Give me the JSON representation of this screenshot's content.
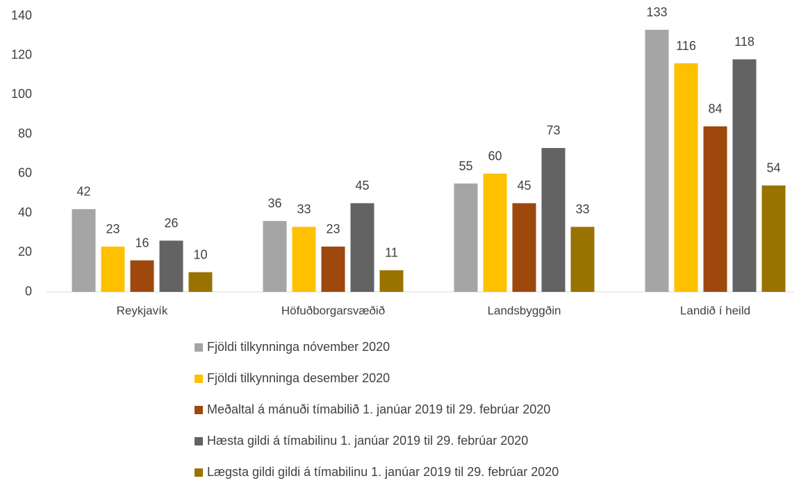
{
  "chart_data": {
    "type": "bar",
    "categories": [
      "Reykjavík",
      "Höfuðborgarsvæðið",
      "Landsbyggðin",
      "Landið í heild"
    ],
    "series": [
      {
        "name": "Fjöldi tilkynninga nóvember 2020",
        "color": "#a5a5a5",
        "values": [
          42,
          36,
          55,
          133
        ]
      },
      {
        "name": "Fjöldi tilkynninga desember 2020",
        "color": "#ffc000",
        "values": [
          23,
          33,
          60,
          116
        ]
      },
      {
        "name": "Meðaltal á mánuði tímabilið 1. janúar 2019 til 29. febrúar 2020",
        "color": "#9e480e",
        "values": [
          16,
          23,
          45,
          84
        ]
      },
      {
        "name": "Hæsta gildi á tímabilinu 1. janúar 2019 til 29. febrúar 2020",
        "color": "#636363",
        "values": [
          26,
          45,
          73,
          118
        ]
      },
      {
        "name": "Lægsta gildi gildi á tímabilinu 1. janúar 2019 til 29. febrúar 2020",
        "color": "#997300",
        "values": [
          10,
          11,
          33,
          54
        ]
      }
    ],
    "ylim": [
      0,
      140
    ],
    "yticks": [
      0,
      20,
      40,
      60,
      80,
      100,
      120,
      140
    ],
    "grid": false,
    "legend": "bottom"
  }
}
